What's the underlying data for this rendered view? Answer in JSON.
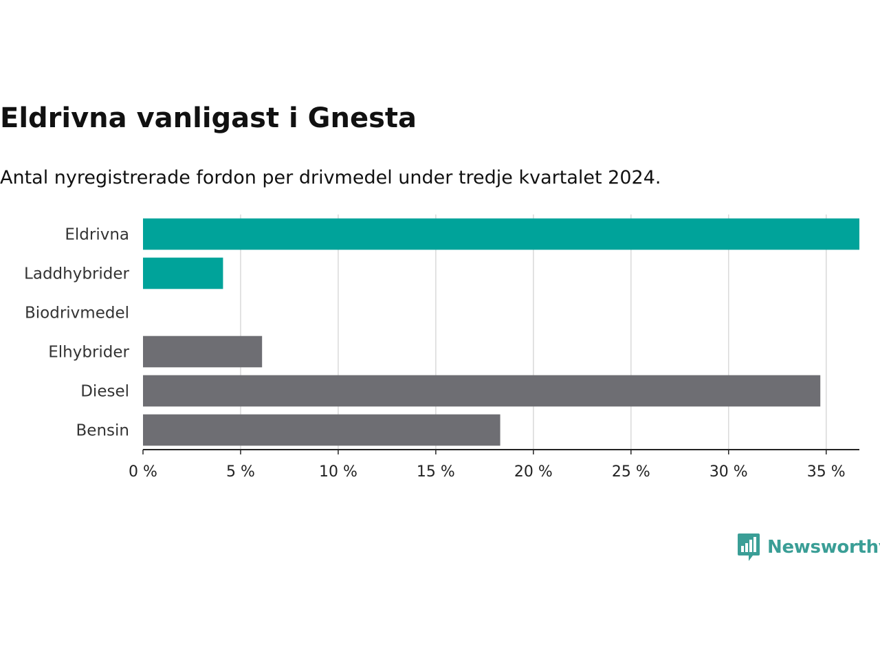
{
  "header": {
    "title": "Eldrivna vanligast i Gnesta",
    "subtitle": "Antal nyregistrerade fordon per drivmedel under tredje kvartalet 2024."
  },
  "logo": {
    "text": "Newsworthy",
    "icon": "newsworthy-chart-bubble-icon",
    "color": "#3a9e96"
  },
  "colors": {
    "highlight": "#00a39a",
    "neutral": "#6e6e73",
    "grid": "#d9d9d9",
    "axis": "#222222"
  },
  "chart_data": {
    "type": "bar",
    "orientation": "horizontal",
    "categories": [
      "Eldrivna",
      "Laddhybrider",
      "Biodrivmedel",
      "Elhybrider",
      "Diesel",
      "Bensin"
    ],
    "values": [
      36.7,
      4.1,
      0,
      6.1,
      34.7,
      18.3
    ],
    "highlight": [
      true,
      true,
      false,
      false,
      false,
      false
    ],
    "unit": "%",
    "xlim": [
      0,
      36.7
    ],
    "xticks": [
      0,
      5,
      10,
      15,
      20,
      25,
      30,
      35
    ],
    "xtick_labels": [
      "0 %",
      "5 %",
      "10 %",
      "15 %",
      "20 %",
      "25 %",
      "30 %",
      "35 %"
    ],
    "grid": "vertical",
    "legend": "none"
  }
}
